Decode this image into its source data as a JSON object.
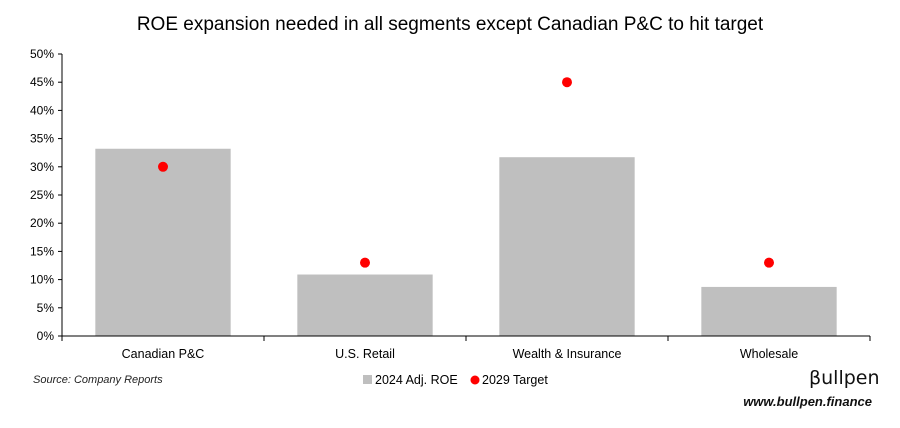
{
  "chart_data": {
    "type": "bar",
    "title": "ROE expansion needed in all segments except Canadian P&C to hit target",
    "xlabel": "",
    "ylabel": "",
    "categories": [
      "Canadian P&C",
      "U.S. Retail",
      "Wealth & Insurance",
      "Wholesale"
    ],
    "series": [
      {
        "name": "2024 Adj. ROE",
        "type": "bar",
        "color": "#bfbfbf",
        "values": [
          33.2,
          10.9,
          31.7,
          8.7
        ]
      },
      {
        "name": "2029 Target",
        "type": "scatter",
        "color": "#ff0000",
        "values": [
          30,
          13,
          45,
          13
        ]
      }
    ],
    "ylim": [
      0,
      50
    ],
    "yticks": [
      "0%",
      "5%",
      "10%",
      "15%",
      "20%",
      "25%",
      "30%",
      "35%",
      "40%",
      "45%",
      "50%"
    ],
    "grid": false,
    "legend_position": "bottom-center"
  },
  "source": "Source: Company Reports",
  "brand": {
    "name": "βullpen",
    "url": "www.bullpen.finance"
  }
}
